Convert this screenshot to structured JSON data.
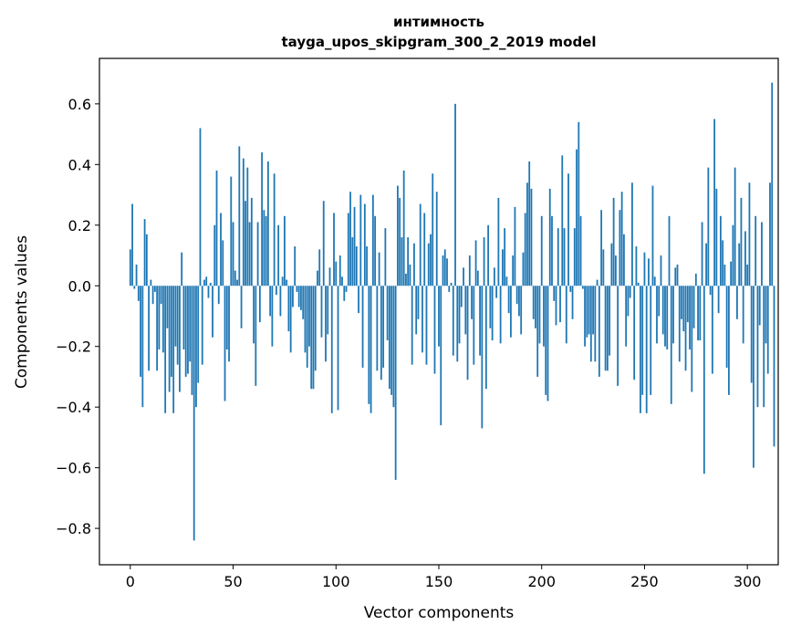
{
  "chart_data": {
    "type": "bar",
    "title": "интимность",
    "subtitle": "tayga_upos_skipgram_300_2_2019 model",
    "xlabel": "Vector components",
    "ylabel": "Components values",
    "xlim": [
      -15,
      315
    ],
    "ylim": [
      -0.92,
      0.75
    ],
    "xticks": [
      0,
      50,
      100,
      150,
      200,
      250,
      300
    ],
    "xtick_labels": [
      "0",
      "50",
      "100",
      "150",
      "200",
      "250",
      "300"
    ],
    "yticks": [
      -0.8,
      -0.6,
      -0.4,
      -0.2,
      0.0,
      0.2,
      0.4,
      0.6
    ],
    "ytick_labels": [
      "−0.8",
      "−0.6",
      "−0.4",
      "−0.2",
      "0.0",
      "0.2",
      "0.4",
      "0.6"
    ],
    "bar_color": "#1f77b4",
    "values": [
      0.12,
      0.27,
      -0.01,
      0.07,
      -0.05,
      -0.3,
      -0.4,
      0.22,
      0.17,
      -0.28,
      0.02,
      -0.06,
      -0.02,
      -0.28,
      -0.21,
      -0.06,
      -0.22,
      -0.42,
      -0.14,
      -0.35,
      -0.3,
      -0.42,
      -0.2,
      -0.26,
      -0.35,
      0.11,
      -0.21,
      -0.3,
      -0.29,
      -0.25,
      -0.36,
      -0.84,
      -0.4,
      -0.32,
      0.52,
      -0.26,
      0.02,
      0.03,
      -0.04,
      0.01,
      -0.17,
      0.2,
      0.38,
      -0.06,
      0.24,
      0.15,
      -0.38,
      -0.21,
      -0.25,
      0.36,
      0.21,
      0.05,
      0.02,
      0.46,
      -0.14,
      0.42,
      0.28,
      0.39,
      0.21,
      0.29,
      -0.19,
      -0.33,
      0.21,
      -0.12,
      0.44,
      0.25,
      0.23,
      0.41,
      -0.1,
      -0.2,
      0.37,
      -0.03,
      0.2,
      -0.1,
      0.03,
      0.23,
      0.02,
      -0.15,
      -0.22,
      -0.07,
      0.13,
      -0.02,
      -0.07,
      -0.08,
      -0.11,
      -0.22,
      -0.27,
      -0.2,
      -0.34,
      -0.34,
      -0.28,
      0.05,
      0.12,
      -0.17,
      0.28,
      -0.25,
      -0.16,
      0.06,
      -0.42,
      0.24,
      0.08,
      -0.41,
      0.1,
      0.03,
      -0.05,
      -0.02,
      0.24,
      0.31,
      0.16,
      0.26,
      0.13,
      -0.09,
      0.3,
      -0.27,
      0.27,
      0.13,
      -0.39,
      -0.42,
      0.3,
      0.23,
      -0.28,
      0.11,
      -0.31,
      -0.27,
      0.19,
      -0.18,
      -0.34,
      -0.36,
      -0.4,
      -0.64,
      0.33,
      0.29,
      0.16,
      0.38,
      0.04,
      0.16,
      0.07,
      -0.26,
      0.14,
      -0.16,
      -0.11,
      0.27,
      -0.22,
      0.24,
      -0.26,
      0.14,
      0.17,
      0.37,
      -0.29,
      0.31,
      -0.2,
      -0.46,
      0.1,
      0.12,
      0.09,
      -0.02,
      0.01,
      -0.23,
      0.6,
      -0.25,
      -0.19,
      -0.07,
      0.06,
      -0.16,
      -0.31,
      0.1,
      -0.11,
      -0.26,
      0.15,
      0.05,
      -0.23,
      -0.47,
      0.16,
      -0.34,
      0.2,
      -0.14,
      -0.18,
      0.06,
      -0.04,
      0.29,
      -0.19,
      0.12,
      0.19,
      0.03,
      -0.09,
      -0.17,
      0.1,
      0.26,
      -0.06,
      -0.1,
      -0.16,
      0.11,
      0.24,
      0.34,
      0.41,
      0.32,
      -0.11,
      -0.14,
      -0.3,
      -0.19,
      0.23,
      -0.2,
      -0.36,
      -0.38,
      0.32,
      0.23,
      -0.05,
      -0.13,
      0.19,
      -0.12,
      0.43,
      0.19,
      -0.19,
      0.37,
      -0.02,
      -0.11,
      0.19,
      0.45,
      0.54,
      0.23,
      -0.01,
      -0.2,
      -0.17,
      -0.16,
      -0.25,
      -0.16,
      -0.25,
      0.02,
      -0.3,
      0.25,
      0.12,
      -0.28,
      -0.28,
      -0.23,
      0.14,
      0.29,
      0.1,
      -0.33,
      0.25,
      0.31,
      0.17,
      -0.2,
      -0.1,
      -0.04,
      0.34,
      -0.31,
      0.13,
      0.01,
      -0.42,
      -0.36,
      0.11,
      -0.42,
      0.09,
      -0.36,
      0.33,
      0.03,
      -0.19,
      -0.1,
      0.1,
      -0.16,
      -0.2,
      -0.21,
      0.23,
      -0.39,
      -0.19,
      0.06,
      0.07,
      -0.25,
      -0.11,
      -0.15,
      -0.28,
      -0.12,
      -0.21,
      -0.35,
      -0.14,
      0.04,
      -0.18,
      -0.18,
      0.21,
      -0.62,
      0.14,
      0.39,
      -0.03,
      -0.29,
      0.55,
      0.32,
      -0.09,
      0.23,
      0.15,
      0.07,
      -0.27,
      -0.36,
      0.08,
      0.2,
      0.39,
      -0.11,
      0.14,
      0.29,
      -0.19,
      0.18,
      0.07,
      0.34,
      -0.32,
      -0.6,
      0.23,
      -0.4,
      -0.13,
      0.21,
      -0.4,
      -0.19,
      -0.29,
      0.34,
      0.67,
      -0.53
    ]
  }
}
